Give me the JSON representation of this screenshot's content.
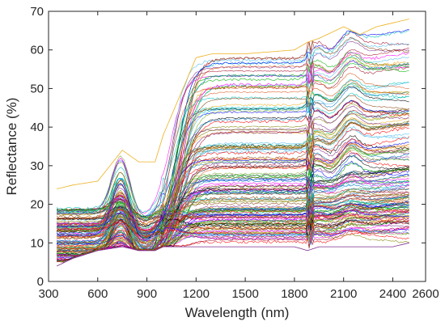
{
  "chart_data": {
    "type": "line",
    "xlabel": "Wavelength (nm)",
    "ylabel": "Reflectance (%)",
    "xlim": [
      300,
      2600
    ],
    "ylim": [
      0,
      70
    ],
    "xticks": [
      300,
      600,
      900,
      1200,
      1500,
      1800,
      2100,
      2400,
      2600
    ],
    "yticks": [
      0,
      10,
      20,
      30,
      40,
      50,
      60,
      70
    ],
    "grid": false,
    "legend": "none",
    "x_range_of_spectra": [
      350,
      2500
    ],
    "num_spectra_shown": 150,
    "envelope": {
      "x": [
        350,
        450,
        600,
        750,
        850,
        950,
        1000,
        1100,
        1200,
        1300,
        1500,
        1800,
        1880,
        1950,
        2100,
        2200,
        2300,
        2400,
        2500
      ],
      "upper": [
        24,
        25,
        26,
        34,
        31,
        31,
        38,
        48,
        58,
        59,
        59,
        60,
        62,
        63,
        66,
        64,
        66,
        67,
        68
      ],
      "lower": [
        4,
        6,
        8,
        9,
        8,
        8,
        9,
        9,
        9,
        9,
        9,
        9,
        8,
        9,
        9,
        9,
        9,
        9,
        10
      ]
    },
    "series_colors": [
      "#0072BD",
      "#D95319",
      "#EDB120",
      "#7E2F8E",
      "#77AC30",
      "#4DBEEE",
      "#A2142F",
      "#000000",
      "#FF0000",
      "#00B000",
      "#0000FF",
      "#FF00FF",
      "#00BFBF",
      "#808000",
      "#8B4513"
    ]
  }
}
